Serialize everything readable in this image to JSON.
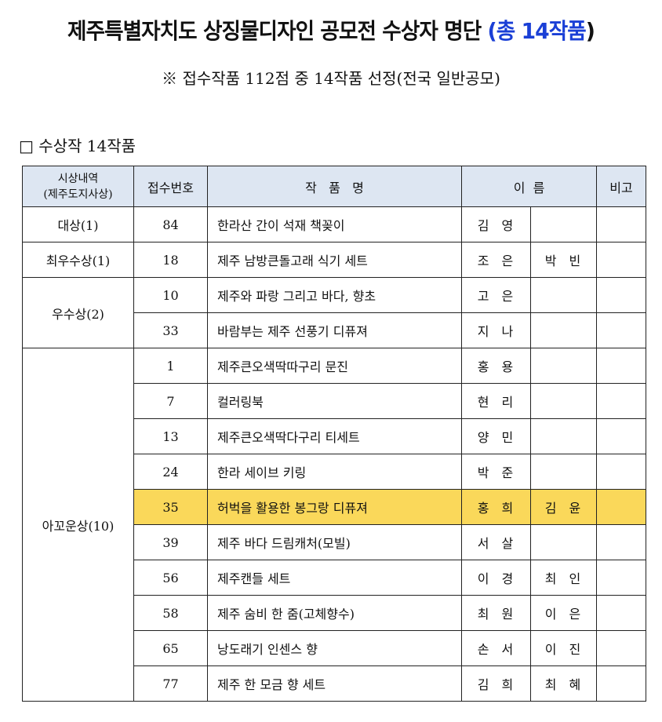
{
  "title": {
    "main": "제주특별자치도 상징물디자인 공모전 수상자 명단 ",
    "highlight": "(총 14작품",
    "close": ")"
  },
  "subtitle": "※  접수작품 112점  중 14작품  선정(전국  일반공모)",
  "section": "□ 수상작  14작품",
  "colors": {
    "header_bg": "#dde6f2",
    "highlight_row": "#fad85a",
    "title_accent": "#1a3fd6"
  },
  "headers": {
    "award": "시상내역",
    "award_sub": "(제주도지사상)",
    "number": "접수번호",
    "work": "작   품   명",
    "name": "이  름",
    "note": "비고"
  },
  "groups": [
    {
      "award": "대상(1)",
      "rows": [
        {
          "no": "84",
          "work": "한라산 간이 석재 책꽂이",
          "name1": "김영",
          "name2": "",
          "highlight": false
        }
      ]
    },
    {
      "award": "최우수상(1)",
      "rows": [
        {
          "no": "18",
          "work": "제주 남방큰돌고래 식기 세트",
          "name1": "조은",
          "name2": "박빈",
          "highlight": false
        }
      ]
    },
    {
      "award": "우수상(2)",
      "rows": [
        {
          "no": "10",
          "work": "제주와 파랑 그리고 바다, 향초",
          "name1": "고은",
          "name2": "",
          "highlight": false
        },
        {
          "no": "33",
          "work": "바람부는 제주 선풍기 디퓨져",
          "name1": "지나",
          "name2": "",
          "highlight": false
        }
      ]
    },
    {
      "award": "아꼬운상(10)",
      "rows": [
        {
          "no": "1",
          "work": "제주큰오색딱따구리 문진",
          "name1": "홍용",
          "name2": "",
          "highlight": false
        },
        {
          "no": "7",
          "work": "컬러링북",
          "name1": "현리",
          "name2": "",
          "highlight": false
        },
        {
          "no": "13",
          "work": "제주큰오색딱다구리 티세트",
          "name1": "양민",
          "name2": "",
          "highlight": false
        },
        {
          "no": "24",
          "work": "한라 세이브 키링",
          "name1": "박준",
          "name2": "",
          "highlight": false
        },
        {
          "no": "35",
          "work": "허벅을 활용한 봉그랑 디퓨져",
          "name1": "홍희",
          "name2": "김윤",
          "highlight": true
        },
        {
          "no": "39",
          "work": "제주 바다 드림캐처(모빌)",
          "name1": "서살",
          "name2": "",
          "highlight": false
        },
        {
          "no": "56",
          "work": "제주캔들 세트",
          "name1": "이경",
          "name2": "최인",
          "highlight": false
        },
        {
          "no": "58",
          "work": "제주 숨비 한 줌(고체향수)",
          "name1": "최원",
          "name2": "이은",
          "highlight": false
        },
        {
          "no": "65",
          "work": "낭도래기 인센스 향",
          "name1": "손서",
          "name2": "이진",
          "highlight": false
        },
        {
          "no": "77",
          "work": "제주 한 모금 향 세트",
          "name1": "김희",
          "name2": "최혜",
          "highlight": false
        }
      ]
    }
  ]
}
